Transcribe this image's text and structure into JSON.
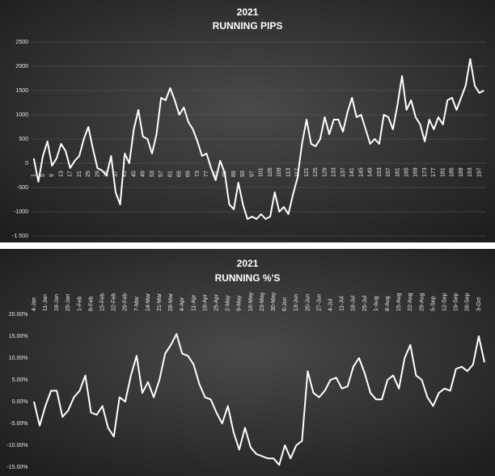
{
  "chart_data": [
    {
      "type": "line",
      "title": "2021",
      "subtitle": "RUNNING PIPS",
      "x": [
        1,
        3,
        5,
        7,
        9,
        11,
        13,
        15,
        17,
        19,
        21,
        23,
        25,
        27,
        29,
        31,
        33,
        35,
        37,
        39,
        41,
        43,
        45,
        47,
        49,
        51,
        53,
        55,
        57,
        59,
        61,
        63,
        65,
        67,
        69,
        71,
        73,
        75,
        77,
        79,
        81,
        83,
        85,
        87,
        89,
        91,
        93,
        95,
        97,
        99,
        101,
        103,
        105,
        107,
        109,
        111,
        113,
        115,
        117,
        119,
        121,
        123,
        125,
        127,
        129,
        131,
        133,
        135,
        137,
        139,
        141,
        143,
        145,
        147,
        149,
        151,
        153,
        155,
        157,
        159,
        161,
        163,
        165,
        167,
        169,
        171,
        173,
        175,
        177,
        179,
        181,
        183,
        185,
        187,
        189,
        191,
        193,
        195,
        197,
        199
      ],
      "series": [
        {
          "name": "Running pips",
          "color": "#ffffff",
          "values": [
            100,
            -380,
            150,
            450,
            -50,
            100,
            400,
            250,
            -100,
            50,
            150,
            500,
            750,
            300,
            -100,
            -150,
            -250,
            150,
            -600,
            -850,
            200,
            0,
            700,
            1100,
            550,
            500,
            200,
            600,
            1350,
            1300,
            1550,
            1300,
            1000,
            1150,
            850,
            700,
            450,
            150,
            200,
            -100,
            -350,
            50,
            -200,
            -850,
            -950,
            -400,
            -850,
            -1150,
            -1100,
            -1150,
            -1050,
            -1150,
            -1100,
            -600,
            -1000,
            -900,
            -1050,
            -650,
            -300,
            400,
            900,
            400,
            350,
            500,
            950,
            600,
            900,
            900,
            650,
            1050,
            1350,
            950,
            1000,
            700,
            400,
            500,
            400,
            1000,
            950,
            700,
            1200,
            1800,
            1100,
            1300,
            950,
            800,
            450,
            900,
            700,
            950,
            800,
            1300,
            1350,
            1100,
            1350,
            1600,
            2150,
            1600,
            1450,
            1500
          ]
        }
      ],
      "xlim": [
        0,
        200
      ],
      "xticks": [
        1,
        5,
        9,
        13,
        17,
        21,
        25,
        29,
        33,
        37,
        41,
        45,
        49,
        53,
        57,
        61,
        65,
        69,
        73,
        77,
        81,
        85,
        89,
        93,
        97,
        101,
        105,
        109,
        113,
        117,
        121,
        125,
        129,
        133,
        137,
        141,
        145,
        149,
        153,
        157,
        161,
        165,
        169,
        173,
        177,
        181,
        185,
        189,
        193,
        197
      ],
      "ylim": [
        -1500,
        2500
      ],
      "yticks": [
        2500,
        2000,
        1500,
        1000,
        500,
        0,
        -500,
        -1000,
        {
          "value": -1500,
          "label": "-1 500"
        }
      ],
      "grid": true
    },
    {
      "type": "line",
      "title": "2021",
      "subtitle": "RUNNING %'S",
      "categories": [
        "4-Jan",
        null,
        "11-Jan",
        null,
        "18-Jan",
        null,
        "25-Jan",
        null,
        "1-Feb",
        null,
        "8-Feb",
        null,
        "15-Feb",
        null,
        "22-Feb",
        null,
        "29-Feb",
        null,
        "7-Mar",
        null,
        "14-Mar",
        null,
        "21-Mar",
        null,
        "28-Mar",
        null,
        "4-Apr",
        null,
        "11-Apr",
        null,
        "18-Apr",
        null,
        "25-Apr",
        null,
        "2-May",
        null,
        "9-May",
        null,
        "16-May",
        null,
        "23-May",
        null,
        "30-May",
        null,
        "6-Jun",
        null,
        "13-Jun",
        null,
        "20-Jun",
        null,
        "27-Jun",
        null,
        "4-Jul",
        null,
        "11-Jul",
        null,
        "18-Jul",
        null,
        "25-Jul",
        null,
        "1-Aug",
        null,
        "8-Aug",
        null,
        "15-Aug",
        null,
        "22-Aug",
        null,
        "29-Aug",
        null,
        "5-Sep",
        null,
        "12-Sep",
        null,
        "19-Sep",
        null,
        "26-Sep",
        null,
        "3-Oct",
        null
      ],
      "series": [
        {
          "name": "Running %",
          "color": "#ffffff",
          "values": [
            0,
            -5.5,
            -1,
            2.5,
            2.5,
            -3.5,
            -2,
            1,
            2.5,
            6,
            -2.5,
            -3,
            -1,
            -6,
            -8,
            1,
            0,
            6,
            10.5,
            2,
            4.5,
            1,
            5,
            11,
            13,
            15.5,
            11,
            10.5,
            8.5,
            4,
            1,
            0.5,
            -2.5,
            -5,
            -1,
            -7,
            -11,
            -6,
            -10.5,
            -12,
            -12.5,
            -13,
            -13,
            -14.5,
            -10,
            -13,
            -10,
            -9,
            7,
            2,
            1,
            2.5,
            5,
            5.5,
            3,
            3.5,
            8,
            10,
            6.5,
            2,
            0.5,
            0.5,
            5,
            6,
            3,
            10,
            13,
            6,
            5,
            1,
            -1,
            2,
            3,
            2.5,
            7.5,
            8,
            7,
            8.5,
            15,
            9
          ]
        }
      ],
      "ylim": [
        -15,
        20
      ],
      "yticks": [
        {
          "value": 20,
          "label": "20.00%"
        },
        {
          "value": 15,
          "label": "15.00%"
        },
        {
          "value": 10,
          "label": "10.00%"
        },
        {
          "value": 5,
          "label": "5.00%"
        },
        {
          "value": 0,
          "label": "0.00%"
        },
        {
          "value": -5,
          "label": "-5.00%"
        },
        {
          "value": -10,
          "label": "-10.00%"
        },
        {
          "value": -15,
          "label": "-15.00%"
        }
      ],
      "grid": false
    }
  ]
}
